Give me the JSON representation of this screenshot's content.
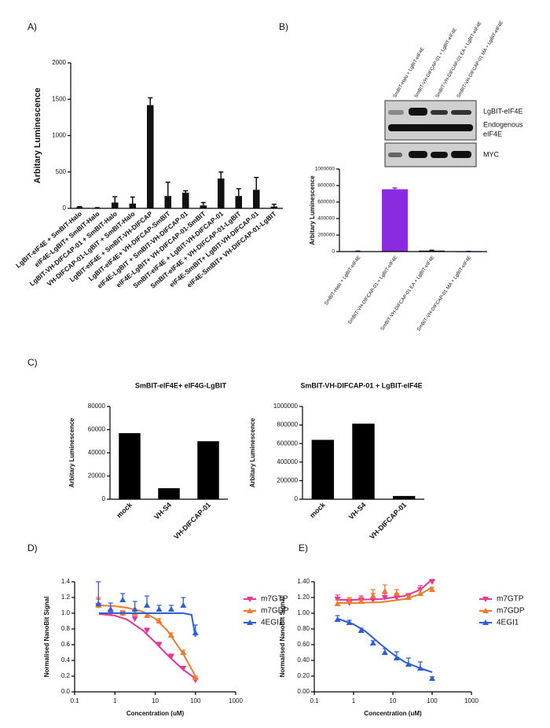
{
  "chart_data": [
    {
      "type": "bar",
      "panel": "A)",
      "ylabel": "Arbitary Luminescence",
      "categories": [
        "LgBIT-eIF4E + SmBIT-Halo",
        "eIF4E-LgBIT+ SmBIT-Halo",
        "LgBIT-VH-DIFCAP-01 + SmBIT-Halo",
        "VH-DIFCAP-01-LgBIT + SmBIT-Halo",
        "LgBIT-eIF4E + SmBIT-VH-DIFCAP",
        "LgBIT-eIF4E+ VH-DIFCAP-SmBIT",
        "eIF4E-LgBIT + SmBIT-VH-DIFCAP-01",
        "eIF4E-LgBIT+ VH-DIFCAP-01-SmBIT",
        "SmBIT-eIF4E + LgBIT-VH-DIFCAP-01",
        "SmBIT-eIF4E + VH-DIFCAP-01-LgBIT",
        "eIF4E-SmBIT+ LgBIT-VH-DIFCAP-01",
        "eIF4E-SmBIT+ VH-DIFCAP-01-LgBIT"
      ],
      "values": [
        15,
        5,
        80,
        65,
        1420,
        170,
        215,
        40,
        410,
        170,
        255,
        25
      ],
      "errors": [
        10,
        5,
        80,
        90,
        100,
        190,
        25,
        40,
        90,
        100,
        170,
        30
      ],
      "color": "#111111",
      "ylim": [
        0,
        2000
      ],
      "yticks": [
        0,
        500,
        1000,
        1500,
        2000
      ],
      "grid": false
    },
    {
      "type": "bar",
      "panel": "B)",
      "ylabel": "Arbitary Luminescence",
      "blot_lanes": [
        "SmBIT-Halo + LgBIT-eIF4E",
        "SmBIT-VH-DIFCAP-01 + LgBIT-eIF4E",
        "SmBIT-VH-DIFCAP-01 EA + LgBIT-eIF4E",
        "SmBIT-VH-DIFCAP-01 MA + LgBIT-eIF4E"
      ],
      "blot_bands": [
        "LgBIT-eIF4E",
        "Endogenous",
        "eIF4E",
        "MYC"
      ],
      "categories": [
        "SmBIT-Halo + LgBIT-eIF4E",
        "SmBIT-VH-DIFCAP-01 + LgBIT-eIF4E",
        "SmBIT-VH-DIFCAP-01 EA + LgBIT-eIF4E",
        "SmBIT-VH-DIFCAP-01 MA + LgBIT-eIF4E"
      ],
      "values": [
        5000,
        755000,
        12000,
        3000
      ],
      "errors": [
        2000,
        15000,
        5000,
        1000
      ],
      "colors": [
        "#2b3fd6",
        "#8a2be2",
        "#222222",
        "#2b3fd6"
      ],
      "ylim": [
        0,
        1000000
      ],
      "yticks": [
        0,
        200000,
        400000,
        600000,
        800000,
        1000000
      ],
      "grid": false
    },
    {
      "type": "bar",
      "panel": "C)",
      "title": "SmBIT-eIF4E+ eIF4G-LgBIT",
      "ylabel": "Arbitary  Luminescence",
      "categories": [
        "mock",
        "VH-S4",
        "VH-DIFCAP-01"
      ],
      "values": [
        57000,
        9500,
        50000
      ],
      "color": "#000000",
      "ylim": [
        0,
        80000
      ],
      "yticks": [
        0,
        20000,
        40000,
        60000,
        80000
      ],
      "grid": false
    },
    {
      "type": "bar",
      "title": "SmBIT-VH-DIFCAP-01 + LgBIT-eIF4E",
      "ylabel": "Arbitary  Luminescence",
      "categories": [
        "mock",
        "VH-S4",
        "VH-DIFCAP-01"
      ],
      "values": [
        640000,
        815000,
        35000
      ],
      "color": "#000000",
      "ylim": [
        0,
        1000000
      ],
      "yticks": [
        0,
        200000,
        400000,
        600000,
        800000,
        1000000
      ],
      "grid": false
    },
    {
      "type": "scatter",
      "panel": "D)",
      "ylabel": "Normalised NanoBit Signal",
      "xlabel": "Concentration (uM)",
      "xscale": "log",
      "xlim": [
        0.1,
        1000
      ],
      "xticks": [
        0.1,
        1,
        10,
        100,
        1000
      ],
      "ylim": [
        0,
        1.4
      ],
      "yticks": [
        {
          "value": 0,
          "label": "0.0"
        },
        0.2,
        0.4,
        0.6,
        0.8,
        {
          "value": 1,
          "label": "1.0"
        },
        1.2,
        1.4
      ],
      "grid": false,
      "series": [
        {
          "name": "m7GTP",
          "color": "#e8359a",
          "marker": "down",
          "x": [
            0.39,
            0.78,
            1.56,
            3.125,
            6.25,
            12.5,
            25,
            50,
            100
          ],
          "values": [
            1.1,
            1.0,
            1.0,
            0.93,
            0.78,
            0.6,
            0.45,
            0.3,
            0.15
          ],
          "errors": [
            0.08,
            0.04,
            0.03,
            0.03,
            0.03,
            0.03,
            0.03,
            0.02,
            0.02
          ],
          "fit": {
            "x": [
              0.4,
              1,
              2,
              5,
              10,
              20,
              50,
              100
            ],
            "values": [
              0.99,
              0.97,
              0.92,
              0.78,
              0.63,
              0.47,
              0.28,
              0.17
            ]
          }
        },
        {
          "name": "m7GDP",
          "color": "#f07a2b",
          "marker": "up",
          "x": [
            0.39,
            0.78,
            1.56,
            3.125,
            6.25,
            12.5,
            25,
            50,
            100
          ],
          "values": [
            1.1,
            1.05,
            1.0,
            1.0,
            0.97,
            0.9,
            0.72,
            0.5,
            0.18
          ],
          "errors": [
            0.1,
            0.04,
            0.03,
            0.03,
            0.03,
            0.03,
            0.03,
            0.03,
            0.02
          ],
          "fit": {
            "x": [
              0.4,
              1,
              2,
              5,
              10,
              20,
              50,
              100
            ],
            "values": [
              1.1,
              1.09,
              1.07,
              1.02,
              0.93,
              0.78,
              0.48,
              0.2
            ]
          }
        },
        {
          "name": "4EGI1",
          "color": "#2b5fd6",
          "marker": "up",
          "x": [
            0.39,
            0.78,
            1.56,
            3.125,
            6.25,
            12.5,
            25,
            50,
            100
          ],
          "values": [
            1.12,
            1.05,
            1.17,
            1.05,
            1.1,
            1.05,
            1.05,
            1.1,
            0.75
          ],
          "errors": [
            0.28,
            0.08,
            0.08,
            0.1,
            0.12,
            0.05,
            0.05,
            0.1,
            0.1
          ],
          "fit": {
            "x": [
              0.4,
              10,
              50,
              80,
              100
            ],
            "values": [
              1.0,
              1.0,
              1.0,
              0.98,
              0.7
            ]
          }
        }
      ]
    },
    {
      "type": "scatter",
      "panel": "E)",
      "ylabel": "Normalised NanoBit Signal",
      "xlabel": "Concentration (uM)",
      "xscale": "log",
      "xlim": [
        0.1,
        1000
      ],
      "xticks": [
        0.1,
        1,
        10,
        100,
        1000
      ],
      "ylim": [
        0,
        1.4
      ],
      "yticks": [
        {
          "value": 0,
          "label": "0.00"
        },
        {
          "value": 0.2,
          "label": "0.20"
        },
        {
          "value": 0.4,
          "label": "0.40"
        },
        {
          "value": 0.6,
          "label": "0.60"
        },
        {
          "value": 0.8,
          "label": "0.80"
        },
        {
          "value": 1,
          "label": "1.00"
        },
        {
          "value": 1.2,
          "label": "1.20"
        },
        {
          "value": 1.4,
          "label": "1.40"
        }
      ],
      "grid": false,
      "series": [
        {
          "name": "m7GTP",
          "color": "#e8359a",
          "marker": "down",
          "x": [
            0.39,
            0.78,
            1.56,
            3.125,
            6.25,
            12.5,
            25,
            50,
            100
          ],
          "values": [
            1.18,
            1.13,
            1.17,
            1.17,
            1.2,
            1.2,
            1.22,
            1.3,
            1.4
          ],
          "errors": [
            0.05,
            0.05,
            0.05,
            0.08,
            0.05,
            0.05,
            0.03,
            0.05,
            0.03
          ],
          "fit": {
            "x": [
              0.4,
              1,
              5,
              20,
              50,
              100
            ],
            "values": [
              1.17,
              1.17,
              1.18,
              1.22,
              1.3,
              1.43
            ]
          }
        },
        {
          "name": "m7GDP",
          "color": "#f07a2b",
          "marker": "up",
          "x": [
            0.39,
            0.78,
            1.56,
            3.125,
            6.25,
            12.5,
            25,
            50,
            100
          ],
          "values": [
            1.12,
            1.15,
            1.15,
            1.22,
            1.28,
            1.25,
            1.2,
            1.25,
            1.3
          ],
          "errors": [
            0.05,
            0.05,
            0.05,
            0.08,
            0.08,
            0.05,
            0.03,
            0.05,
            0.03
          ],
          "fit": {
            "x": [
              0.4,
              1,
              5,
              20,
              50,
              100
            ],
            "values": [
              1.13,
              1.13,
              1.14,
              1.18,
              1.24,
              1.33
            ]
          }
        },
        {
          "name": "4EGI1",
          "color": "#2b5fd6",
          "marker": "up",
          "x": [
            0.39,
            0.78,
            1.56,
            3.125,
            6.25,
            12.5,
            25,
            50,
            100
          ],
          "values": [
            0.92,
            0.88,
            0.78,
            0.62,
            0.5,
            0.43,
            0.35,
            0.3,
            0.17
          ],
          "errors": [
            0.05,
            0.03,
            0.03,
            0.03,
            0.05,
            0.08,
            0.08,
            0.08,
            0.02
          ],
          "fit": {
            "x": [
              0.4,
              1,
              2,
              5,
              10,
              20,
              50,
              100
            ],
            "values": [
              0.93,
              0.86,
              0.77,
              0.6,
              0.48,
              0.38,
              0.3,
              0.25
            ]
          }
        }
      ]
    }
  ]
}
